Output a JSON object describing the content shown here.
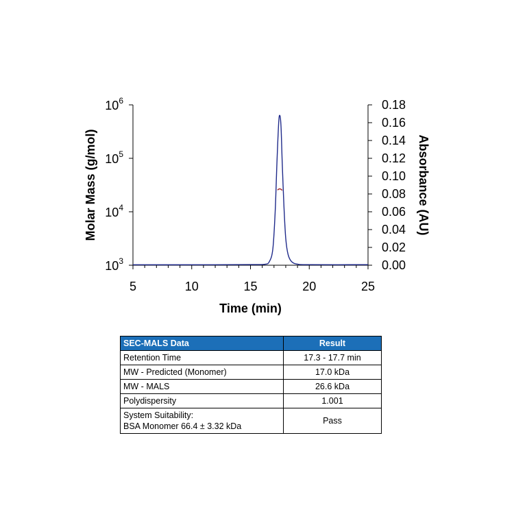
{
  "chart_data": {
    "type": "line",
    "xlabel": "Time (min)",
    "ylabel_left": "Molar Mass (g/mol)",
    "ylabel_right": "Absorbance (AU)",
    "xlim": [
      5,
      25
    ],
    "x_ticks": [
      5,
      10,
      15,
      20,
      25
    ],
    "left_scale": "log",
    "left_ylim": [
      1000,
      1000000
    ],
    "left_ticks": [
      {
        "value": 1000,
        "base": "10",
        "exp": "3"
      },
      {
        "value": 10000,
        "base": "10",
        "exp": "4"
      },
      {
        "value": 100000,
        "base": "10",
        "exp": "5"
      },
      {
        "value": 1000000,
        "base": "10",
        "exp": "6"
      }
    ],
    "right_ylim": [
      0,
      0.18
    ],
    "right_ticks": [
      "0.00",
      "0.02",
      "0.04",
      "0.06",
      "0.08",
      "0.10",
      "0.12",
      "0.14",
      "0.16",
      "0.18"
    ],
    "colors": {
      "absorbance": "#1f2a8a",
      "molar_mass": "#a01c1c"
    },
    "series": [
      {
        "axis": "right",
        "x": [
          5,
          10,
          15,
          16.2,
          16.6,
          16.9,
          17.1,
          17.25,
          17.4,
          17.5,
          17.6,
          17.7,
          17.85,
          18.0,
          18.2,
          18.5,
          19.0,
          20,
          25
        ],
        "y": [
          0.0005,
          0.0005,
          0.0007,
          0.001,
          0.004,
          0.018,
          0.06,
          0.115,
          0.16,
          0.168,
          0.155,
          0.115,
          0.065,
          0.03,
          0.012,
          0.004,
          0.0012,
          0.0006,
          0.0006
        ]
      },
      {
        "axis": "left",
        "x": [
          17.3,
          17.4,
          17.5,
          17.6,
          17.7
        ],
        "y": [
          25500,
          26500,
          26800,
          26300,
          25200
        ]
      }
    ]
  },
  "table": {
    "header": [
      "SEC-MALS Data",
      "Result"
    ],
    "rows": [
      {
        "param": "Retention Time",
        "value": "17.3 - 17.7 min"
      },
      {
        "param": "MW - Predicted (Monomer)",
        "value": "17.0 kDa"
      },
      {
        "param": "MW - MALS",
        "value": "26.6 kDa"
      },
      {
        "param": "Polydispersity",
        "value": "1.001"
      }
    ],
    "last_row": {
      "param_line1": "System Suitability:",
      "param_line2": "BSA Monomer 66.4 ± 3.32 kDa",
      "value": "Pass"
    }
  }
}
